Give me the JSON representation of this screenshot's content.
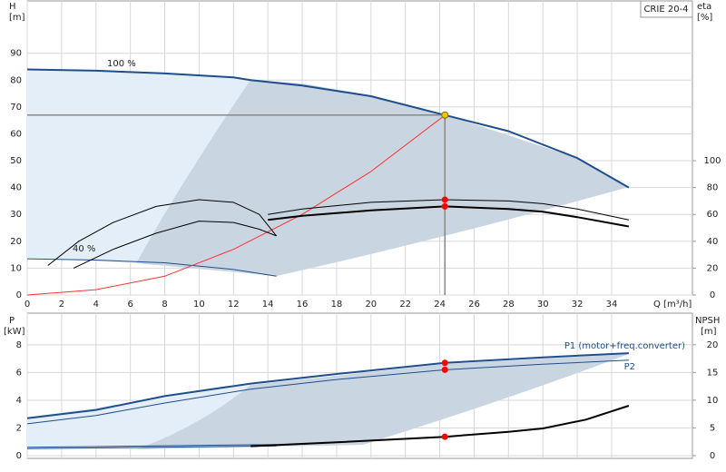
{
  "chart_data": [
    {
      "type": "line",
      "title": "CRIE 20-4",
      "ylabel": "H",
      "yunit": "[m]",
      "y2label": "eta",
      "y2unit": "[%]",
      "xlabel": "Q [m³/h]",
      "xlim": [
        0,
        38.7
      ],
      "xticks": [
        0,
        2,
        4,
        6,
        8,
        10,
        12,
        14,
        16,
        18,
        20,
        22,
        24,
        26,
        28,
        30,
        32,
        34
      ],
      "ylim": [
        0,
        109.5
      ],
      "yticks": [
        0,
        10,
        20,
        30,
        40,
        50,
        60,
        70,
        80,
        90
      ],
      "y2lim": [
        0,
        219
      ],
      "y2ticks": [
        0,
        20,
        40,
        60,
        80,
        100
      ],
      "grid": true,
      "annotations": [
        "100 %",
        "40 %"
      ],
      "series": [
        {
          "color": "#1f4e8c",
          "width": 2,
          "x": [
            0,
            4,
            8,
            12,
            13,
            16,
            20,
            24.3,
            28,
            32,
            35
          ],
          "values": [
            84,
            83.5,
            82.5,
            81,
            80,
            78,
            74,
            67,
            61,
            51,
            40
          ]
        },
        {
          "color": "#1f4e8c",
          "width": 1,
          "x": [
            0,
            4,
            8,
            12,
            14.5
          ],
          "values": [
            13.5,
            13,
            12,
            9.5,
            7
          ]
        },
        {
          "color": "#ff3333",
          "width": 1,
          "x": [
            0,
            4,
            8,
            12,
            16,
            20,
            24.3
          ],
          "values": [
            0,
            2,
            7,
            17,
            30,
            46,
            67
          ]
        },
        {
          "color": "#000000",
          "width": 1,
          "axis": "y2",
          "x": [
            14,
            16,
            20,
            24.3,
            28,
            30,
            32,
            35
          ],
          "values": [
            60,
            64,
            69,
            71,
            70,
            68,
            64,
            56
          ]
        },
        {
          "color": "#000000",
          "width": 2,
          "axis": "y2",
          "x": [
            14,
            16,
            20,
            24.3,
            28,
            30,
            32,
            35
          ],
          "values": [
            56,
            59,
            63,
            66,
            64,
            62,
            58,
            51
          ]
        },
        {
          "color": "#000000",
          "width": 1,
          "axis": "y2",
          "x": [
            1.2,
            3,
            5,
            7.5,
            10,
            12,
            13.5,
            14.5
          ],
          "values": [
            22,
            40,
            54,
            66,
            71,
            69,
            60,
            44
          ]
        },
        {
          "color": "#000000",
          "width": 1,
          "axis": "y2",
          "x": [
            2.7,
            5,
            7.5,
            10,
            12,
            13.5,
            14.5
          ],
          "values": [
            20,
            34,
            46,
            55,
            54,
            49,
            44
          ]
        },
        {
          "color": "#f5c400",
          "marker": true,
          "x": [
            24.3
          ],
          "values": [
            67
          ]
        },
        {
          "color": "#ff0000",
          "marker": true,
          "axis": "y2",
          "x": [
            24.3,
            24.3
          ],
          "values": [
            71,
            66
          ]
        }
      ]
    },
    {
      "type": "line",
      "ylabel": "P",
      "yunit": "[kW]",
      "y2label": "NPSH",
      "y2unit": "[m]",
      "xlim": [
        0,
        38.7
      ],
      "ylim": [
        -0.2,
        10.29
      ],
      "yticks": [
        0,
        2,
        4,
        6,
        8
      ],
      "y2lim": [
        -0.5,
        25.7
      ],
      "y2ticks": [
        0,
        5,
        10,
        15,
        20
      ],
      "grid": true,
      "series": [
        {
          "name": "P1 (motor+freq.converter)",
          "color": "#1f4e8c",
          "width": 2,
          "x": [
            0,
            4,
            8,
            13,
            18,
            24.3,
            30,
            35
          ],
          "values": [
            2.7,
            3.3,
            4.3,
            5.2,
            5.9,
            6.7,
            7.1,
            7.4
          ]
        },
        {
          "name": "P2",
          "color": "#1f4e8c",
          "width": 1,
          "x": [
            0,
            4,
            8,
            13,
            18,
            24.3,
            30,
            35
          ],
          "values": [
            2.3,
            2.9,
            3.8,
            4.8,
            5.5,
            6.2,
            6.6,
            6.9
          ]
        },
        {
          "color": "#1f4e8c",
          "width": 1,
          "x": [
            0,
            14.5
          ],
          "values": [
            0.6,
            0.8
          ]
        },
        {
          "color": "#1f4e8c",
          "width": 1,
          "x": [
            0,
            14.5
          ],
          "values": [
            0.5,
            0.7
          ]
        },
        {
          "color": "#000000",
          "width": 2,
          "axis": "y2",
          "x": [
            13,
            18,
            24.3,
            28,
            30,
            32.5,
            35
          ],
          "values": [
            1.7,
            2.4,
            3.4,
            4.3,
            4.9,
            6.5,
            9
          ]
        },
        {
          "color": "#ff0000",
          "marker": true,
          "x": [
            24.3,
            24.3
          ],
          "values": [
            6.7,
            6.2
          ]
        },
        {
          "color": "#ff0000",
          "marker": true,
          "axis": "y2",
          "x": [
            24.3
          ],
          "values": [
            3.4
          ]
        }
      ]
    }
  ]
}
